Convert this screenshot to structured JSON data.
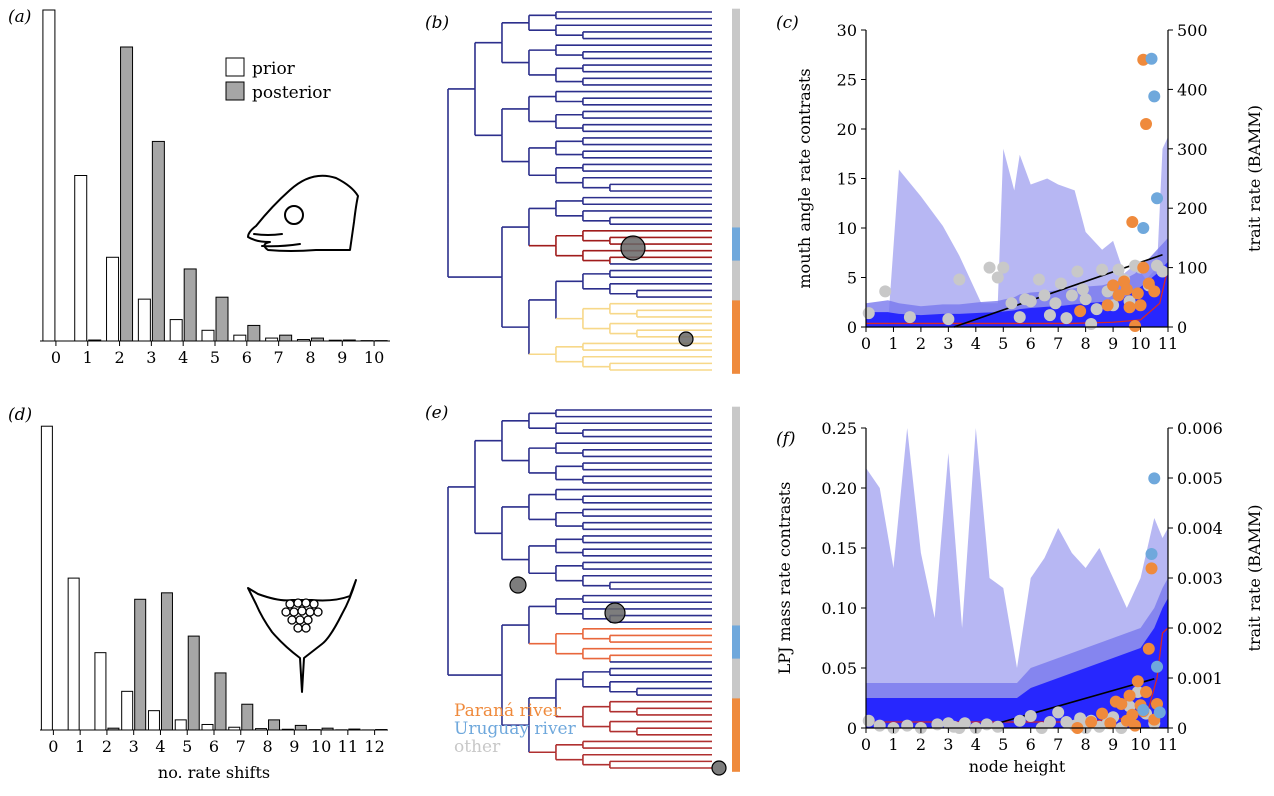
{
  "panel_labels": {
    "a": "(a)",
    "b": "(b)",
    "c": "(c)",
    "d": "(d)",
    "e": "(e)",
    "f": "(f)"
  },
  "legend": {
    "prior": "prior",
    "posterior": "posterior"
  },
  "region_legend": {
    "parana": "Paraná river",
    "uruguay": "Uruguay river",
    "other": "other"
  },
  "colors": {
    "prior_fill": "#ffffff",
    "posterior_fill": "#a6a6a6",
    "parana": "#ef8a3c",
    "uruguay": "#6fa8dc",
    "other": "#c8c8c8",
    "branch": "#2c2f8c",
    "band_light": "#b3b3f2",
    "band_mid": "#7878ee",
    "band_dark": "#1d1dff",
    "trend": "#000000",
    "median": "#d62728"
  },
  "chart_data": [
    {
      "panel": "a",
      "type": "bar",
      "xlabel": "",
      "categories": [
        "0",
        "1",
        "2",
        "3",
        "4",
        "5",
        "6",
        "7",
        "8",
        "9",
        "10"
      ],
      "series": [
        {
          "name": "prior",
          "values": [
            0.34,
            0.17,
            0.086,
            0.043,
            0.022,
            0.011,
            0.006,
            0.003,
            0.0015,
            0.0008,
            0.0004
          ]
        },
        {
          "name": "posterior",
          "values": [
            0,
            0.001,
            0.302,
            0.205,
            0.074,
            0.045,
            0.016,
            0.006,
            0.003,
            0.001,
            0.0004
          ]
        }
      ]
    },
    {
      "panel": "d",
      "type": "bar",
      "xlabel": "no. rate shifts",
      "categories": [
        "0",
        "1",
        "2",
        "3",
        "4",
        "5",
        "6",
        "7",
        "8",
        "9",
        "10",
        "11",
        "12"
      ],
      "series": [
        {
          "name": "prior",
          "values": [
            0.33,
            0.165,
            0.084,
            0.042,
            0.021,
            0.011,
            0.006,
            0.003,
            0.0015,
            0.0008,
            0.0004,
            0.0002,
            0.0001
          ]
        },
        {
          "name": "posterior",
          "values": [
            0,
            0,
            0.002,
            0.142,
            0.149,
            0.102,
            0.062,
            0.028,
            0.011,
            0.005,
            0.002,
            0.001,
            0.0005
          ]
        }
      ]
    },
    {
      "panel": "b",
      "type": "tree",
      "tips": 55,
      "tip_regions": [
        "other",
        "other",
        "other",
        "other",
        "other",
        "other",
        "other",
        "other",
        "other",
        "other",
        "other",
        "other",
        "other",
        "other",
        "other",
        "other",
        "other",
        "other",
        "other",
        "other",
        "other",
        "other",
        "other",
        "other",
        "other",
        "other",
        "other",
        "other",
        "other",
        "other",
        "other",
        "other",
        "other",
        "uruguay",
        "uruguay",
        "uruguay",
        "uruguay",
        "uruguay",
        "other",
        "other",
        "other",
        "other",
        "other",
        "other",
        "parana",
        "parana",
        "parana",
        "parana",
        "parana",
        "parana",
        "parana",
        "parana",
        "parana",
        "parana",
        "parana"
      ],
      "shift_clades": [
        {
          "region": "uruguay",
          "color": "#a01c1c",
          "size": "large"
        },
        {
          "region": "parana",
          "color": "#f7d889",
          "size": "small"
        }
      ]
    },
    {
      "panel": "e",
      "type": "tree",
      "tips": 55,
      "tip_regions": [
        "other",
        "other",
        "other",
        "other",
        "other",
        "other",
        "other",
        "other",
        "other",
        "other",
        "other",
        "other",
        "other",
        "other",
        "other",
        "other",
        "other",
        "other",
        "other",
        "other",
        "other",
        "other",
        "other",
        "other",
        "other",
        "other",
        "other",
        "other",
        "other",
        "other",
        "other",
        "other",
        "other",
        "uruguay",
        "uruguay",
        "uruguay",
        "uruguay",
        "uruguay",
        "other",
        "other",
        "other",
        "other",
        "other",
        "other",
        "parana",
        "parana",
        "parana",
        "parana",
        "parana",
        "parana",
        "parana",
        "parana",
        "parana",
        "parana",
        "parana"
      ],
      "shift_clades": [
        {
          "region": "uruguay",
          "color": "#e8673c",
          "size": "large"
        },
        {
          "region": "parana",
          "color": "#b03030",
          "size": "small"
        }
      ]
    },
    {
      "panel": "c",
      "type": "scatter",
      "xlabel": "",
      "ylabel": "mouth angle rate contrasts",
      "y2label": "trait rate (BAMM)",
      "xlim": [
        0,
        11
      ],
      "ylim": [
        0,
        30
      ],
      "y2lim": [
        0,
        500
      ],
      "xticks": [
        "0",
        "1",
        "2",
        "3",
        "4",
        "5",
        "6",
        "7",
        "8",
        "9",
        "10",
        "11"
      ],
      "yticks": [
        "0",
        "5",
        "10",
        "15",
        "20",
        "25",
        "30"
      ],
      "y2ticks": [
        "0",
        "100",
        "200",
        "300",
        "400",
        "500"
      ],
      "band_x": [
        0,
        0.8,
        1.2,
        2,
        2.8,
        3.4,
        4.2,
        4.8,
        5,
        5.4,
        5.6,
        6,
        6.6,
        7,
        7.6,
        8,
        8.6,
        9,
        9.4,
        9.8,
        10.2,
        10.6,
        10.8,
        11
      ],
      "bands": [
        {
          "level": "outer",
          "upper": [
            4,
            4,
            265,
            220,
            170,
            120,
            40,
            40,
            300,
            230,
            290,
            240,
            250,
            240,
            230,
            160,
            130,
            145,
            90,
            105,
            80,
            100,
            300,
            320
          ]
        },
        {
          "level": "mid",
          "upper": [
            40,
            45,
            40,
            35,
            38,
            38,
            42,
            44,
            46,
            50,
            55,
            58,
            60,
            62,
            65,
            68,
            70,
            75,
            80,
            90,
            110,
            130,
            140,
            150
          ]
        },
        {
          "level": "inner",
          "upper": [
            25,
            25,
            22,
            20,
            22,
            22,
            24,
            25,
            26,
            28,
            30,
            32,
            34,
            35,
            38,
            40,
            42,
            45,
            50,
            60,
            75,
            90,
            100,
            110
          ]
        }
      ],
      "median_rate": [
        [
          0,
          6
        ],
        [
          7.5,
          6
        ],
        [
          9,
          8
        ],
        [
          10,
          12
        ],
        [
          10.7,
          40
        ],
        [
          11,
          100
        ]
      ],
      "trend": {
        "x": [
          3.2,
          10.8
        ],
        "y": [
          0,
          7.3
        ]
      },
      "points_other": [
        [
          0.1,
          1.4
        ],
        [
          0.7,
          3.6
        ],
        [
          1.6,
          1.0
        ],
        [
          3.0,
          0.8
        ],
        [
          3.4,
          4.8
        ],
        [
          4.5,
          6.0
        ],
        [
          4.8,
          5.0
        ],
        [
          5.0,
          6.0
        ],
        [
          5.3,
          2.4
        ],
        [
          5.6,
          1.0
        ],
        [
          5.8,
          2.8
        ],
        [
          6.0,
          2.6
        ],
        [
          6.3,
          4.8
        ],
        [
          6.5,
          3.2
        ],
        [
          6.7,
          1.2
        ],
        [
          6.9,
          2.4
        ],
        [
          7.1,
          4.4
        ],
        [
          7.3,
          0.9
        ],
        [
          7.5,
          3.2
        ],
        [
          7.7,
          5.6
        ],
        [
          7.9,
          3.8
        ],
        [
          8.0,
          2.8
        ],
        [
          8.2,
          0.3
        ],
        [
          8.4,
          1.8
        ],
        [
          8.6,
          5.8
        ],
        [
          8.8,
          3.6
        ],
        [
          9.0,
          2.2
        ],
        [
          9.2,
          5.8
        ],
        [
          9.4,
          4.8
        ],
        [
          9.6,
          2.6
        ],
        [
          9.8,
          6.2
        ],
        [
          10.0,
          6.0
        ],
        [
          10.3,
          4.2
        ],
        [
          10.6,
          6.2
        ],
        [
          10.8,
          5.6
        ]
      ],
      "points_parana": [
        [
          7.8,
          1.6
        ],
        [
          8.8,
          2.2
        ],
        [
          9.0,
          4.2
        ],
        [
          9.2,
          3.2
        ],
        [
          9.4,
          4.6
        ],
        [
          9.5,
          3.8
        ],
        [
          9.6,
          2.0
        ],
        [
          9.7,
          10.6
        ],
        [
          9.8,
          0.1
        ],
        [
          9.9,
          3.4
        ],
        [
          10.0,
          2.2
        ],
        [
          10.1,
          6.0
        ],
        [
          10.1,
          27.0
        ],
        [
          10.2,
          20.5
        ],
        [
          10.3,
          4.4
        ],
        [
          10.5,
          3.6
        ]
      ],
      "points_uruguay": [
        [
          10.1,
          10.0
        ],
        [
          10.4,
          27.1
        ],
        [
          10.5,
          23.3
        ],
        [
          10.6,
          13.0
        ]
      ]
    },
    {
      "panel": "f",
      "type": "scatter",
      "xlabel": "node height",
      "ylabel": "LPJ mass rate contrasts",
      "y2label": "trait rate (BAMM)",
      "xlim": [
        0,
        11
      ],
      "ylim": [
        0,
        0.25
      ],
      "y2lim": [
        0,
        0.006
      ],
      "xticks": [
        "0",
        "1",
        "2",
        "3",
        "4",
        "5",
        "6",
        "7",
        "8",
        "9",
        "10",
        "11"
      ],
      "yticks": [
        "0",
        "0.05",
        "0.10",
        "0.15",
        "0.20",
        "0.25"
      ],
      "y2ticks": [
        "0",
        "0.001",
        "0.002",
        "0.003",
        "0.004",
        "0.005",
        "0.006"
      ],
      "band_x": [
        0,
        0.5,
        1,
        1.5,
        2,
        2.5,
        3,
        3.5,
        4,
        4.5,
        5,
        5.5,
        6,
        6.5,
        7,
        7.5,
        8,
        8.5,
        9,
        9.5,
        10,
        10.5,
        10.8,
        11
      ],
      "bands": [
        {
          "level": "outer",
          "upper": [
            0.0052,
            0.0048,
            0.0032,
            0.006,
            0.0035,
            0.0022,
            0.0055,
            0.002,
            0.006,
            0.003,
            0.0028,
            0.0012,
            0.003,
            0.0034,
            0.004,
            0.0035,
            0.0032,
            0.0036,
            0.003,
            0.0024,
            0.003,
            0.0042,
            0.0038,
            0.004
          ]
        },
        {
          "level": "mid",
          "upper": [
            0.0009,
            0.0009,
            0.0009,
            0.0009,
            0.0009,
            0.0009,
            0.0009,
            0.0009,
            0.0009,
            0.0009,
            0.0009,
            0.0009,
            0.0012,
            0.0013,
            0.0014,
            0.0015,
            0.0016,
            0.0017,
            0.0018,
            0.0019,
            0.002,
            0.0024,
            0.0028,
            0.003
          ]
        },
        {
          "level": "inner",
          "upper": [
            0.0006,
            0.0006,
            0.0006,
            0.0006,
            0.0006,
            0.0006,
            0.0006,
            0.0006,
            0.0006,
            0.0006,
            0.0006,
            0.0006,
            0.0008,
            0.0009,
            0.001,
            0.0011,
            0.0012,
            0.0013,
            0.0014,
            0.0015,
            0.0016,
            0.002,
            0.0024,
            0.0026
          ]
        }
      ],
      "median_rate": [
        [
          0,
          0.00012
        ],
        [
          8,
          0.00012
        ],
        [
          9.5,
          0.0002
        ],
        [
          10.3,
          0.0004
        ],
        [
          10.6,
          0.001
        ],
        [
          10.8,
          0.0019
        ],
        [
          11,
          0.002
        ]
      ],
      "trend": {
        "x": [
          4.2,
          10.5
        ],
        "y": [
          0,
          0.041
        ]
      },
      "points_other": [
        [
          0.1,
          0.006
        ],
        [
          0.5,
          0.002
        ],
        [
          1.0,
          0.0
        ],
        [
          1.5,
          0.002
        ],
        [
          2.0,
          0.0
        ],
        [
          2.6,
          0.003
        ],
        [
          3.0,
          0.004
        ],
        [
          3.2,
          0.001
        ],
        [
          3.4,
          0.0
        ],
        [
          3.6,
          0.004
        ],
        [
          4.0,
          0.0
        ],
        [
          4.4,
          0.003
        ],
        [
          4.8,
          0.001
        ],
        [
          5.6,
          0.006
        ],
        [
          6.0,
          0.01
        ],
        [
          6.4,
          0.0
        ],
        [
          6.7,
          0.005
        ],
        [
          7.0,
          0.013
        ],
        [
          7.3,
          0.005
        ],
        [
          7.6,
          0.002
        ],
        [
          7.8,
          0.008
        ],
        [
          8.0,
          0.0
        ],
        [
          8.2,
          0.006
        ],
        [
          8.5,
          0.001
        ],
        [
          8.8,
          0.004
        ],
        [
          9.0,
          0.009
        ],
        [
          9.3,
          0.0
        ],
        [
          9.6,
          0.018
        ],
        [
          9.9,
          0.03
        ],
        [
          10.2,
          0.012
        ],
        [
          10.5,
          0.004
        ]
      ],
      "points_parana": [
        [
          7.7,
          0.0
        ],
        [
          8.2,
          0.005
        ],
        [
          8.6,
          0.012
        ],
        [
          8.9,
          0.004
        ],
        [
          9.1,
          0.022
        ],
        [
          9.3,
          0.02
        ],
        [
          9.5,
          0.006
        ],
        [
          9.6,
          0.027
        ],
        [
          9.7,
          0.011
        ],
        [
          9.8,
          0.002
        ],
        [
          9.9,
          0.039
        ],
        [
          10.0,
          0.019
        ],
        [
          10.1,
          0.014
        ],
        [
          10.2,
          0.03
        ],
        [
          10.3,
          0.066
        ],
        [
          10.4,
          0.133
        ],
        [
          10.5,
          0.007
        ],
        [
          10.6,
          0.02
        ]
      ],
      "points_uruguay": [
        [
          10.1,
          0.015
        ],
        [
          10.4,
          0.145
        ],
        [
          10.5,
          0.208
        ],
        [
          10.6,
          0.051
        ],
        [
          10.7,
          0.013
        ]
      ]
    }
  ]
}
